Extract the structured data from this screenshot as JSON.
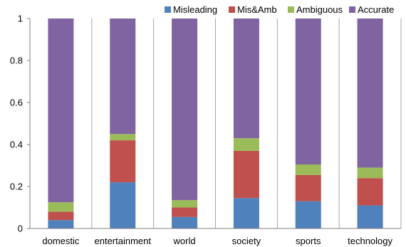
{
  "chart_data": {
    "type": "bar",
    "stacked": true,
    "categories": [
      "domestic",
      "entertainment",
      "world",
      "society",
      "sports",
      "technology"
    ],
    "series": [
      {
        "name": "Misleading",
        "color": "#4F81BD",
        "values": [
          0.04,
          0.22,
          0.055,
          0.145,
          0.13,
          0.11
        ]
      },
      {
        "name": "Mis&Amb",
        "color": "#C0504D",
        "values": [
          0.04,
          0.2,
          0.045,
          0.225,
          0.125,
          0.13
        ]
      },
      {
        "name": "Ambiguous",
        "color": "#9BBB59",
        "values": [
          0.045,
          0.03,
          0.035,
          0.06,
          0.05,
          0.05
        ]
      },
      {
        "name": "Accurate",
        "color": "#8064A2",
        "values": [
          0.875,
          0.55,
          0.865,
          0.57,
          0.695,
          0.71
        ]
      }
    ],
    "ylim": [
      0,
      1
    ],
    "yticks": [
      "0",
      "0.2",
      "0.4",
      "0.6",
      "0.8",
      "1"
    ],
    "ytick_values": [
      0,
      0.2,
      0.4,
      0.6,
      0.8,
      1
    ],
    "grid": "vertical",
    "legend_position": "top-right",
    "title": "",
    "xlabel": "",
    "ylabel": ""
  }
}
